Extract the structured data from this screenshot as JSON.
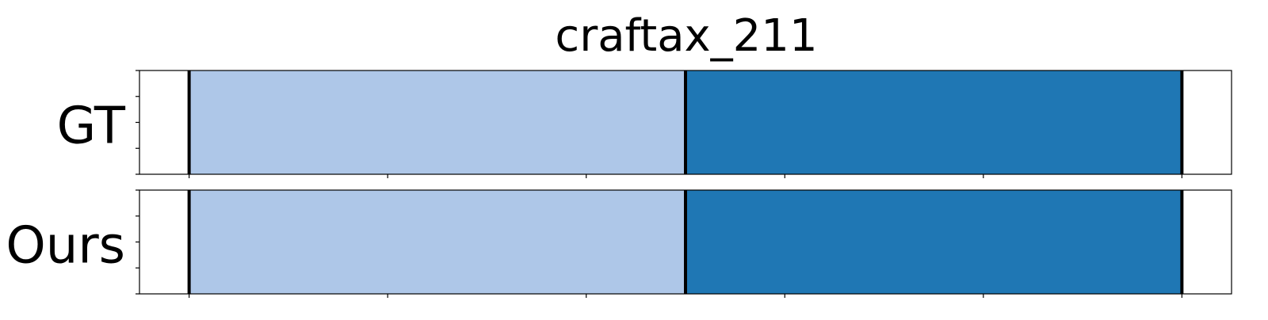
{
  "chart_data": {
    "type": "bar",
    "title": "craftax_211",
    "xlim": [
      0,
      11
    ],
    "rows": [
      {
        "label": "GT",
        "segments": [
          {
            "start": 0.5,
            "end": 5.5,
            "color": "#aec7e8"
          },
          {
            "start": 5.5,
            "end": 10.5,
            "color": "#1f77b4"
          }
        ],
        "boundaries": [
          0.5,
          5.5,
          10.5
        ]
      },
      {
        "label": "Ours",
        "segments": [
          {
            "start": 0.5,
            "end": 5.5,
            "color": "#aec7e8"
          },
          {
            "start": 5.5,
            "end": 10.5,
            "color": "#1f77b4"
          }
        ],
        "boundaries": [
          0.5,
          5.5,
          10.5
        ]
      }
    ],
    "x_ticks": [
      0.5,
      2.5,
      4.5,
      6.5,
      8.5,
      10.5
    ],
    "y_tick_count": 5,
    "x_tick_labels_visible": false,
    "y_tick_labels_visible": false,
    "grid": false,
    "legend": "none"
  }
}
